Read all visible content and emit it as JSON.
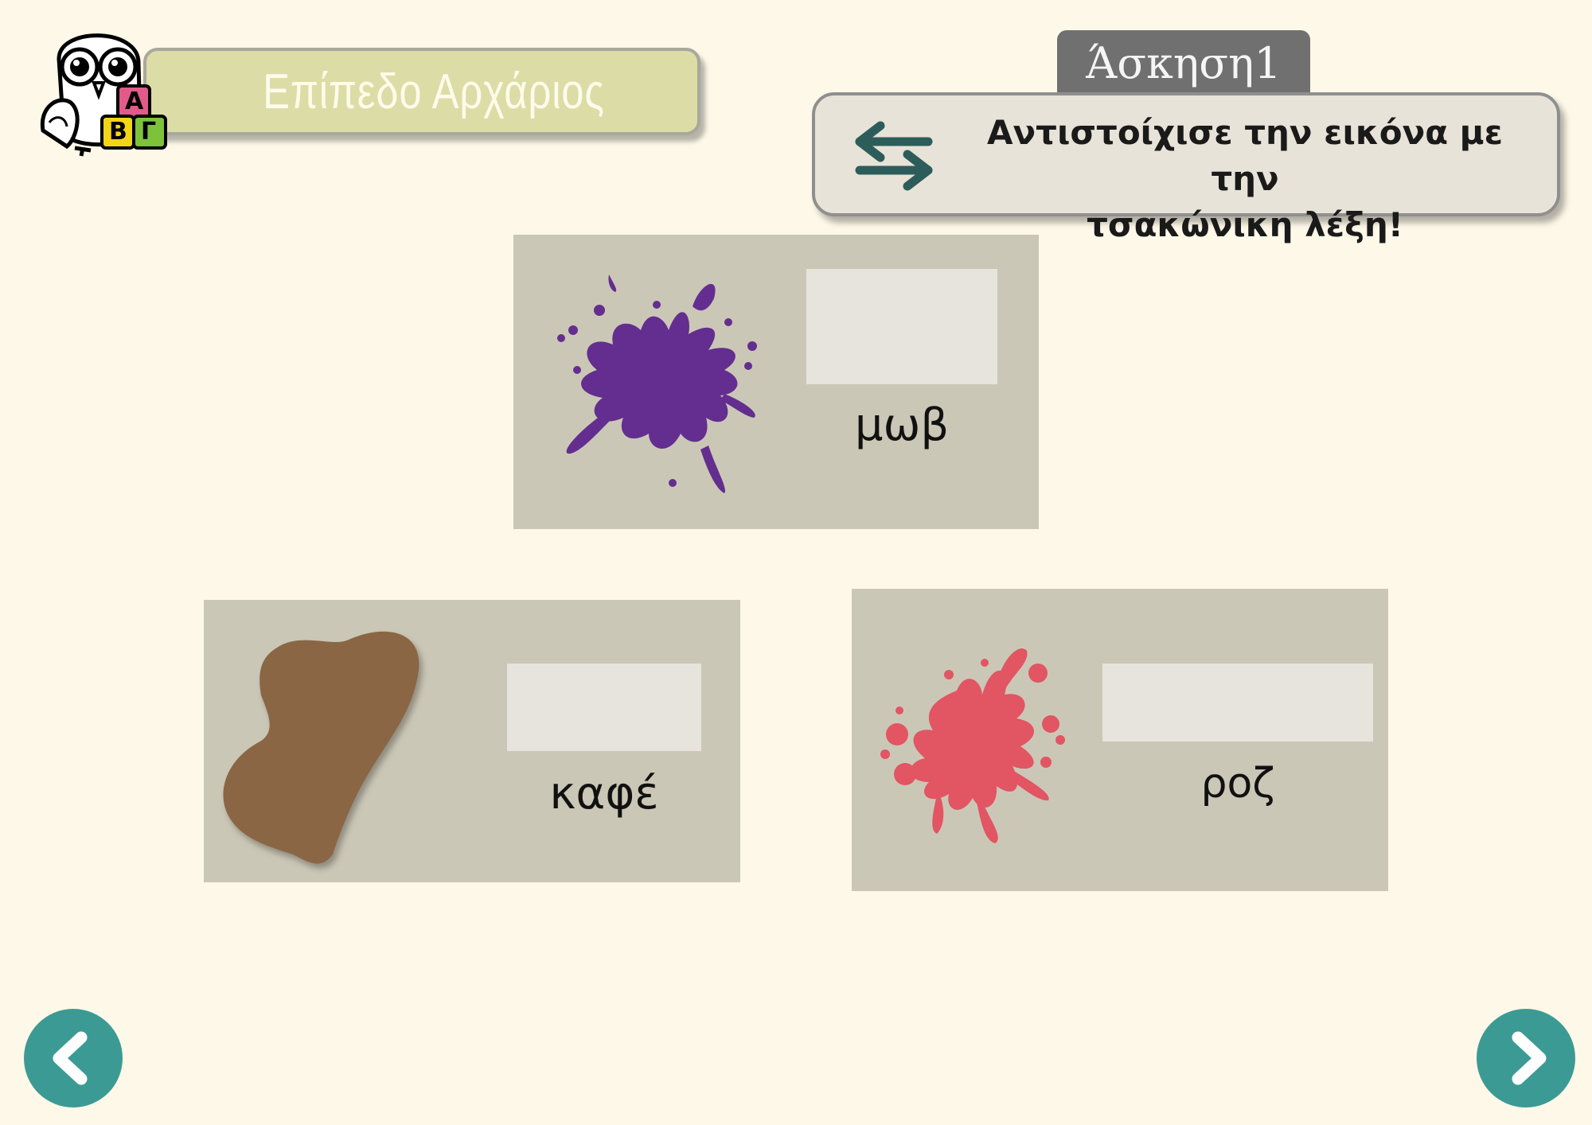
{
  "header": {
    "level_title": "Επίπεδο Αρχάριος",
    "owl_blocks": [
      "Α",
      "Β",
      "Γ"
    ]
  },
  "exercise": {
    "title": "Άσκηση1",
    "instruction_line1": "Αντιστοίχισε την εικόνα με την",
    "instruction_line2": "τσακώνικη λέξη!"
  },
  "cards": [
    {
      "word": "μωβ",
      "icon": "purple-paint-splash-icon",
      "color": "#632e8f"
    },
    {
      "word": "καφέ",
      "icon": "brown-paint-blob-icon",
      "color": "#8a6645"
    },
    {
      "word": "ροζ",
      "icon": "pink-paint-splash-icon",
      "color": "#e25563"
    }
  ],
  "navigation": {
    "prev_icon": "chevron-left-icon",
    "next_icon": "chevron-right-icon",
    "button_color": "#3c9a94"
  }
}
